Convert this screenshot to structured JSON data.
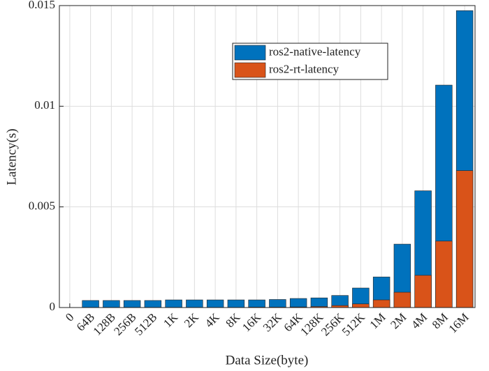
{
  "chart_data": {
    "type": "bar",
    "overlap": true,
    "xlabel": "Data Size(byte)",
    "ylabel": "Latency(s)",
    "categories": [
      "0",
      "64B",
      "128B",
      "256B",
      "512B",
      "1K",
      "2K",
      "4K",
      "8K",
      "16K",
      "32K",
      "64K",
      "128K",
      "256K",
      "512K",
      "1M",
      "2M",
      "4M",
      "8M",
      "16M"
    ],
    "series": [
      {
        "name": "ros2-native-latency",
        "color": "#0072bd",
        "values": [
          null,
          0.00035,
          0.00035,
          0.00035,
          0.00035,
          0.00038,
          0.00038,
          0.00038,
          0.00038,
          0.00038,
          0.0004,
          0.00045,
          0.00048,
          0.0006,
          0.00097,
          0.00152,
          0.00315,
          0.0058,
          0.01105,
          0.01475
        ]
      },
      {
        "name": "ros2-rt-latency",
        "color": "#d95319",
        "values": [
          null,
          1e-05,
          1e-05,
          1e-05,
          1e-05,
          1e-05,
          1e-05,
          1e-05,
          1e-05,
          2e-05,
          2e-05,
          3e-05,
          5e-05,
          0.0001,
          0.00018,
          0.00038,
          0.00076,
          0.0016,
          0.0033,
          0.0068
        ]
      }
    ],
    "ylim": [
      0,
      0.015
    ],
    "yticks": [
      0,
      0.005,
      0.01,
      0.015
    ],
    "grid": true,
    "legend": "upper-center"
  }
}
